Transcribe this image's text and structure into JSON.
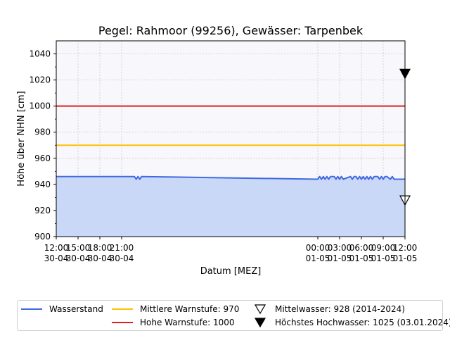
{
  "chart_data": {
    "type": "line",
    "title": "Pegel:  Rahmoor (99256), Gewässer:  Tarpenbek",
    "xlabel": "Datum [MEZ]",
    "ylabel": "Höhe über NHN [cm]",
    "ylim": [
      900,
      1050
    ],
    "yticks": [
      900,
      920,
      940,
      960,
      980,
      1000,
      1020,
      1040
    ],
    "xlim": [
      "30-04 12:00",
      "01-05 12:00"
    ],
    "xticks": [
      {
        "time": "12:00",
        "date": "30-04"
      },
      {
        "time": "15:00",
        "date": "30-04"
      },
      {
        "time": "18:00",
        "date": "30-04"
      },
      {
        "time": "21:00",
        "date": "30-04"
      },
      {
        "time": "00:00",
        "date": "01-05"
      },
      {
        "time": "03:00",
        "date": "01-05"
      },
      {
        "time": "06:00",
        "date": "01-05"
      },
      {
        "time": "09:00",
        "date": "01-05"
      },
      {
        "time": "12:00",
        "date": "01-05"
      }
    ],
    "grid": true,
    "series": [
      {
        "name": "Wasserstand",
        "color": "#4169e1",
        "fill": "#cad8f7",
        "x": [
          "30-04 12:00",
          "30-04 22:45",
          "30-04 23:00",
          "30-04 23:15",
          "30-04 23:30",
          "30-04 23:45",
          "01-05 00:00",
          "01-05 00:15",
          "01-05 00:30",
          "01-05 00:45",
          "01-05 01:00",
          "01-05 01:15",
          "01-05 01:30",
          "01-05 01:45",
          "01-05 02:15",
          "01-05 02:30",
          "01-05 02:45",
          "01-05 03:00",
          "01-05 03:15",
          "01-05 03:30",
          "01-05 04:30",
          "01-05 04:45",
          "01-05 05:00",
          "01-05 05:15",
          "01-05 05:30",
          "01-05 05:45",
          "01-05 06:00",
          "01-05 06:15",
          "01-05 06:30",
          "01-05 06:45",
          "01-05 07:00",
          "01-05 07:15",
          "01-05 07:30",
          "01-05 07:45",
          "01-05 08:15",
          "01-05 08:30",
          "01-05 08:45",
          "01-05 09:00",
          "01-05 09:15",
          "01-05 09:30",
          "01-05 10:00",
          "01-05 10:15",
          "01-05 10:30",
          "01-05 11:00",
          "01-05 12:00"
        ],
        "y": [
          946,
          946,
          944,
          946,
          944,
          946,
          944,
          946,
          944,
          946,
          944,
          946,
          944,
          946,
          946,
          944,
          946,
          944,
          946,
          944,
          946,
          944,
          946,
          946,
          944,
          946,
          944,
          946,
          944,
          946,
          944,
          946,
          944,
          946,
          946,
          944,
          946,
          944,
          946,
          946,
          944,
          946,
          944,
          944,
          944
        ]
      },
      {
        "name": "Mittlere Warnstufe: 970",
        "color": "#ffc000",
        "y": 970
      },
      {
        "name": "Hohe Warnstufe: 1000",
        "color": "#e0201b",
        "y": 1000
      }
    ],
    "markers": [
      {
        "name": "Mittelwasser: 928 (2014-2024)",
        "y": 928,
        "style": "open-triangle-down"
      },
      {
        "name": "Höchstes Hochwasser: 1025 (03.01.2024)",
        "y": 1025,
        "style": "filled-triangle-down"
      }
    ],
    "legend_position": "below"
  }
}
